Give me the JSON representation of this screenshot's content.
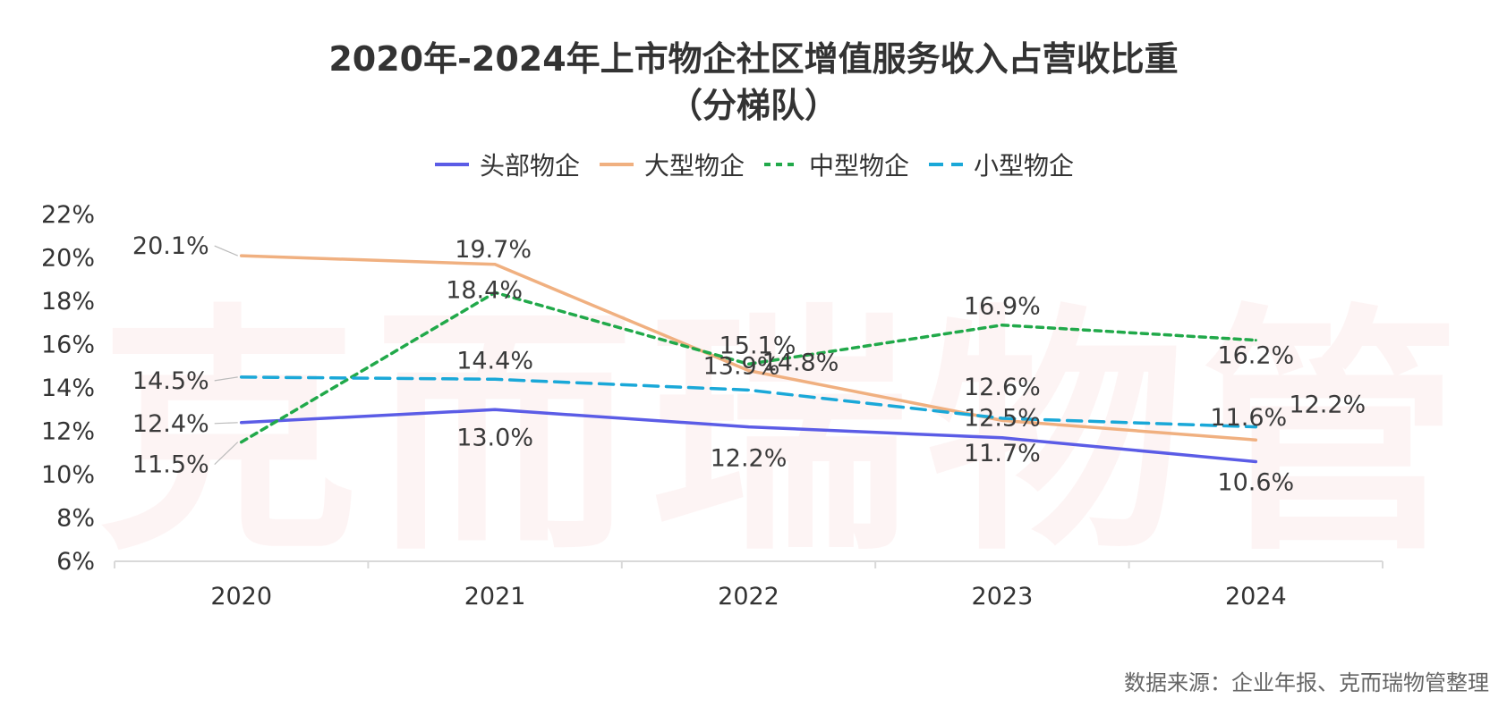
{
  "chart_data": {
    "type": "line",
    "title": "2020年-2024年上市物企社区增值服务收入占营收比重",
    "subtitle": "（分梯队）",
    "categories": [
      "2020",
      "2021",
      "2022",
      "2023",
      "2024"
    ],
    "y_ticks": [
      "6%",
      "8%",
      "10%",
      "12%",
      "14%",
      "16%",
      "18%",
      "20%",
      "22%"
    ],
    "ylim": [
      6,
      22
    ],
    "legend_position": "top",
    "series": [
      {
        "name": "头部物企",
        "values": [
          12.4,
          13.0,
          12.2,
          11.7,
          10.6
        ],
        "color": "#5b5ce6",
        "dash": "solid",
        "labels": [
          "12.4%",
          "13.0%",
          "12.2%",
          "11.7%",
          "10.6%"
        ]
      },
      {
        "name": "大型物企",
        "values": [
          20.1,
          19.7,
          14.8,
          12.5,
          11.6
        ],
        "color": "#f0b080",
        "dash": "solid",
        "labels": [
          "20.1%",
          "19.7%",
          "14.8%",
          "12.5%",
          "11.6%"
        ]
      },
      {
        "name": "中型物企",
        "values": [
          11.5,
          18.4,
          15.1,
          16.9,
          16.2
        ],
        "color": "#21a94a",
        "dash": "dotted",
        "labels": [
          "11.5%",
          "18.4%",
          "15.1%",
          "16.9%",
          "16.2%"
        ]
      },
      {
        "name": "小型物企",
        "values": [
          14.5,
          14.4,
          13.9,
          12.6,
          12.2
        ],
        "color": "#1aa8d8",
        "dash": "dashed",
        "labels": [
          "14.5%",
          "14.4%",
          "13.9%",
          "12.6%",
          "12.2%"
        ]
      }
    ]
  },
  "watermark": "克而瑞物管",
  "source_note": "数据来源：企业年报、克而瑞物管整理"
}
